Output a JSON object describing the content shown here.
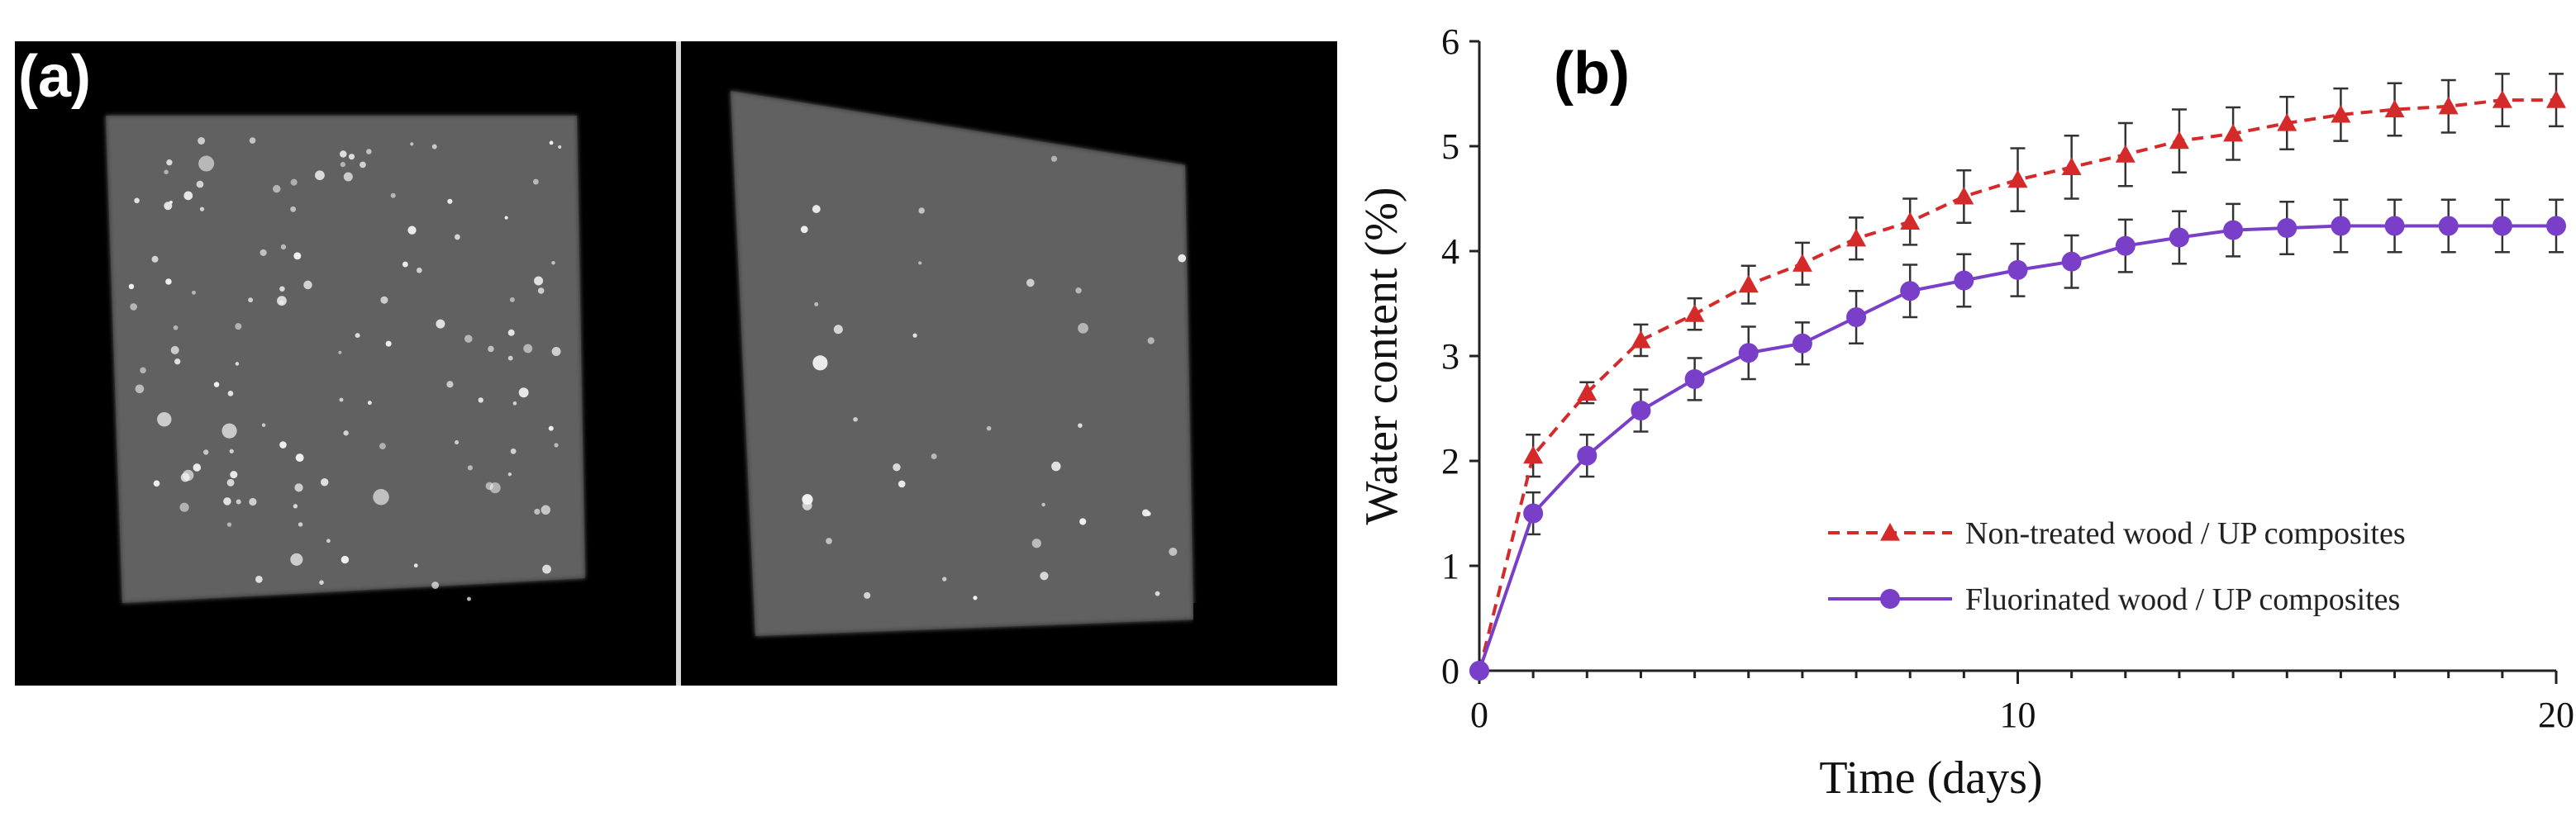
{
  "panel_labels": {
    "a": "(a)",
    "b": "(b)"
  },
  "panel_a": {
    "images": [
      {
        "name": "non-treated-sample-ct",
        "bright_spot_density": "high"
      },
      {
        "name": "fluorinated-sample-ct",
        "bright_spot_density": "low"
      }
    ]
  },
  "chart_data": {
    "type": "line",
    "xlabel": "Time (days)",
    "ylabel": "Water content (%)",
    "xlim": [
      0,
      20
    ],
    "ylim": [
      0,
      6
    ],
    "xticks": [
      0,
      10,
      20
    ],
    "yticks": [
      0,
      1,
      2,
      3,
      4,
      5,
      6
    ],
    "grid": false,
    "legend_position": "bottom-right",
    "x": [
      0,
      1,
      2,
      3,
      4,
      5,
      6,
      7,
      8,
      9,
      10,
      11,
      12,
      13,
      14,
      15,
      16,
      17,
      18,
      19,
      20
    ],
    "series": [
      {
        "name": "Non-treated wood / UP composites",
        "color": "#d42a2a",
        "line_style": "dashed",
        "marker": "triangle",
        "values": [
          0,
          2.05,
          2.65,
          3.15,
          3.4,
          3.68,
          3.88,
          4.12,
          4.28,
          4.52,
          4.68,
          4.8,
          4.92,
          5.05,
          5.12,
          5.22,
          5.3,
          5.35,
          5.38,
          5.44,
          5.44
        ],
        "errors": [
          0.05,
          0.2,
          0.1,
          0.15,
          0.15,
          0.18,
          0.2,
          0.2,
          0.22,
          0.25,
          0.3,
          0.3,
          0.3,
          0.3,
          0.25,
          0.25,
          0.25,
          0.25,
          0.25,
          0.25,
          0.25
        ]
      },
      {
        "name": "Fluorinated wood / UP composites",
        "color": "#7a3fc9",
        "line_style": "solid",
        "marker": "circle",
        "values": [
          0,
          1.5,
          2.05,
          2.48,
          2.78,
          3.03,
          3.12,
          3.37,
          3.62,
          3.72,
          3.82,
          3.9,
          4.05,
          4.13,
          4.2,
          4.22,
          4.24,
          4.24,
          4.24,
          4.24,
          4.24
        ],
        "errors": [
          0.05,
          0.2,
          0.2,
          0.2,
          0.2,
          0.25,
          0.2,
          0.25,
          0.25,
          0.25,
          0.25,
          0.25,
          0.25,
          0.25,
          0.25,
          0.25,
          0.25,
          0.25,
          0.25,
          0.25,
          0.25
        ]
      }
    ]
  }
}
